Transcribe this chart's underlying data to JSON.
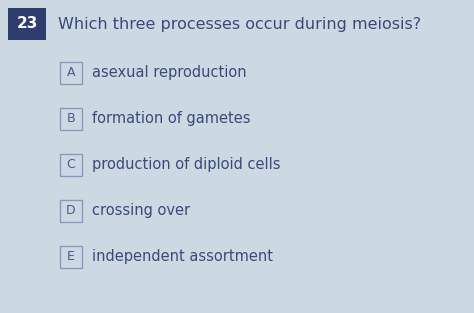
{
  "question_number": "23",
  "question_text": "Which three processes occur during meiosis?",
  "options": [
    {
      "label": "A",
      "text": "asexual reproduction"
    },
    {
      "label": "B",
      "text": "formation of gametes"
    },
    {
      "label": "C",
      "text": "production of diploid cells"
    },
    {
      "label": "D",
      "text": "crossing over"
    },
    {
      "label": "E",
      "text": "independent assortment"
    }
  ],
  "bg_color": "#ccd9e3",
  "number_box_color": "#2e3d6e",
  "number_text_color": "#ffffff",
  "question_text_color": "#3a4a7a",
  "option_label_color": "#4a5a8a",
  "option_text_color": "#3a4a7a",
  "option_box_edge_color": "#8899bb",
  "question_fontsize": 11.5,
  "option_fontsize": 10.5,
  "number_fontsize": 11,
  "fig_width": 4.74,
  "fig_height": 3.13,
  "dpi": 100
}
